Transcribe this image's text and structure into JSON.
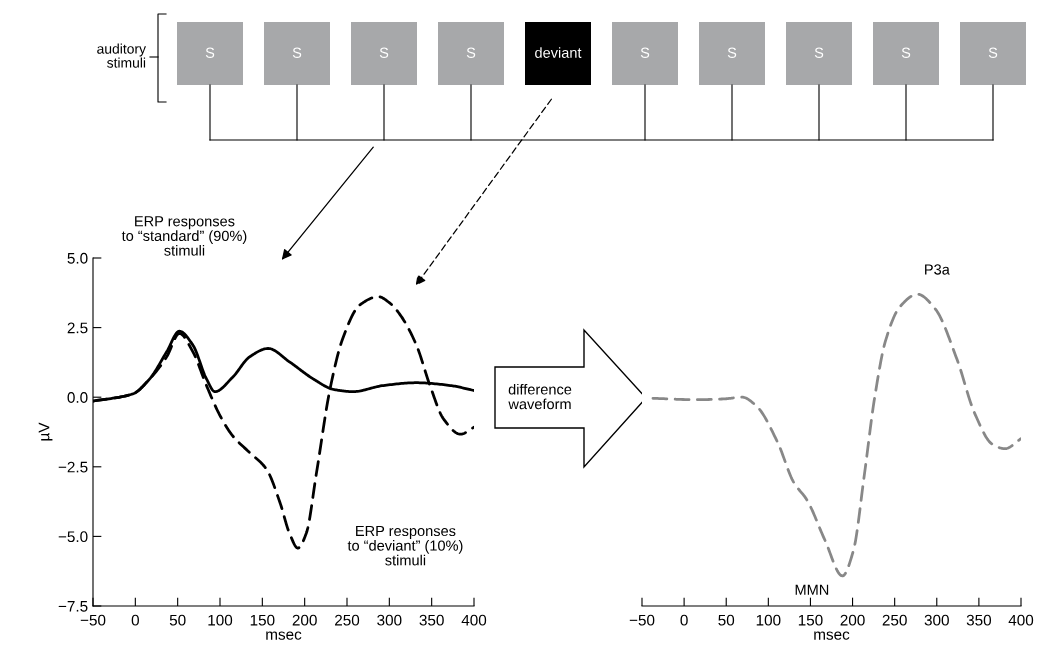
{
  "chart_data": [
    {
      "type": "line",
      "ylabel": "µV",
      "xlabel": "msec",
      "xlim": [
        -50,
        400
      ],
      "ylim": [
        -7.5,
        5.0
      ],
      "xticks": [
        {
          "value": -50,
          "label": "−50"
        },
        0,
        50,
        100,
        150,
        200,
        250,
        300,
        350,
        400
      ],
      "yticks": [
        {
          "value": -7.5,
          "label": "−7.5"
        },
        {
          "value": -5.0,
          "label": "−5.0"
        },
        {
          "value": -2.5,
          "label": "−2.5"
        },
        {
          "value": 0.0,
          "label": "0.0"
        },
        {
          "value": 2.5,
          "label": "2.5"
        },
        {
          "value": 5.0,
          "label": "5.0"
        }
      ],
      "grid": false,
      "legend": false,
      "annotations": [
        "ERP responses\nto “standard” (90%)\nstimuli",
        "ERP responses\nto “deviant” (10%)\nstimuli"
      ],
      "series": [
        {
          "color": "#000000",
          "line_style": "solid",
          "x": [
            -50,
            -3,
            17,
            37,
            52,
            68,
            84,
            94,
            115,
            135,
            157,
            182,
            210,
            234,
            257,
            293,
            332,
            372,
            400
          ],
          "values": [
            -0.14,
            0.12,
            0.66,
            1.63,
            2.37,
            1.87,
            0.66,
            0.2,
            0.72,
            1.45,
            1.75,
            1.27,
            0.66,
            0.28,
            0.2,
            0.42,
            0.52,
            0.42,
            0.24
          ]
        },
        {
          "color": "#000000",
          "line_style": "dashed",
          "x": [
            -50,
            -3,
            17,
            37,
            52,
            68,
            84,
            100,
            115,
            135,
            155,
            171,
            182,
            192,
            202,
            214,
            230,
            245,
            265,
            287,
            301,
            313,
            332,
            348,
            364,
            384,
            400
          ],
          "values": [
            -0.14,
            0.12,
            0.66,
            1.45,
            2.29,
            1.63,
            0.42,
            -0.66,
            -1.39,
            -1.99,
            -2.59,
            -3.8,
            -4.88,
            -5.42,
            -4.88,
            -2.71,
            0.3,
            2.11,
            3.31,
            3.61,
            3.37,
            2.95,
            1.87,
            0.42,
            -0.78,
            -1.33,
            -1.08
          ]
        }
      ]
    },
    {
      "type": "line",
      "xlabel": "msec",
      "xlim": [
        -50,
        400
      ],
      "ylim": [
        -7.5,
        5.0
      ],
      "tick_labels": "x",
      "xticks": [
        {
          "value": -50,
          "label": "−50"
        },
        0,
        50,
        100,
        150,
        200,
        250,
        300,
        350,
        400
      ],
      "grid": false,
      "legend": false,
      "annotations": [
        "difference\nwaveform",
        {
          "text": "MMN",
          "x": 188,
          "y": -6.42
        },
        {
          "text": "P3a",
          "x": 277,
          "y": 3.7
        }
      ],
      "series": [
        {
          "color": "#888888",
          "line_style": "dashed",
          "x": [
            -37,
            14,
            48,
            69,
            86,
            111,
            130,
            146,
            167,
            188,
            201,
            214,
            226,
            239,
            256,
            277,
            298,
            324,
            345,
            366,
            381,
            400
          ],
          "values": [
            -0.04,
            -0.09,
            -0.06,
            0.0,
            -0.32,
            -1.62,
            -3.05,
            -3.7,
            -5.12,
            -6.42,
            -5.51,
            -2.79,
            -0.06,
            2.01,
            3.24,
            3.7,
            3.18,
            1.36,
            -0.58,
            -1.69,
            -1.85,
            -1.49
          ]
        }
      ]
    },
    {
      "type": "other",
      "annotations": [
        "auditory\nstimuli"
      ],
      "categories": [
        "S",
        "S",
        "S",
        "S",
        "deviant",
        "S",
        "S",
        "S",
        "S",
        "S"
      ],
      "colors": [
        "#a7a8aa",
        "#a7a8aa",
        "#a7a8aa",
        "#a7a8aa",
        "#000000",
        "#a7a8aa",
        "#a7a8aa",
        "#a7a8aa",
        "#a7a8aa",
        "#a7a8aa"
      ]
    }
  ]
}
